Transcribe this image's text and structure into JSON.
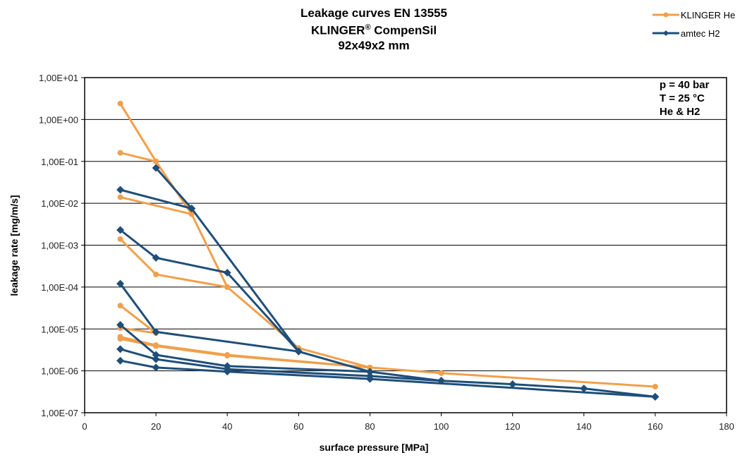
{
  "chart_data": {
    "type": "line",
    "title": [
      "Leakage curves EN 13555",
      "KLINGER® CompenSil",
      "92x49x2 mm"
    ],
    "title_parts": {
      "line1": "Leakage curves EN 13555",
      "line2_a": "KLINGER",
      "line2_sup": "®",
      "line2_b": " CompenSil",
      "line3": "92x49x2 mm"
    },
    "xlabel": "surface pressure [MPa]",
    "ylabel": "leakage rate [mg/m/s]",
    "xlim": [
      0,
      180
    ],
    "ylim": [
      1e-07,
      10
    ],
    "yscale": "log",
    "grid": "horizontal",
    "legend_position": "top-right",
    "x_ticks": [
      0,
      20,
      40,
      60,
      80,
      100,
      120,
      140,
      160,
      180
    ],
    "x_tick_labels": [
      "0",
      "20",
      "40",
      "60",
      "80",
      "100",
      "120",
      "140",
      "160",
      "180"
    ],
    "y_ticks": [
      10,
      1,
      0.1,
      0.01,
      0.001,
      0.0001,
      1e-05,
      1e-06,
      1e-07
    ],
    "y_tick_labels": [
      "1,00E+01",
      "1,00E+00",
      "1,00E-01",
      "1,00E-02",
      "1,00E-03",
      "1,00E-04",
      "1,00E-05",
      "1,00E-06",
      "1,00E-07"
    ],
    "annotation": [
      "p = 40 bar",
      "T = 25 °C",
      "He & H2"
    ],
    "legend": [
      {
        "name": "KLINGER He",
        "color": "#F0A04B",
        "marker": "circle"
      },
      {
        "name": "amtec H2",
        "color": "#1F4E79",
        "marker": "diamond"
      }
    ],
    "series": [
      {
        "name": "KLINGER He",
        "group": 0,
        "points": [
          [
            10,
            2.4
          ],
          [
            20,
            0.1
          ],
          [
            30,
            0.0055
          ],
          [
            40,
            0.0001
          ],
          [
            60,
            3.5e-06
          ],
          [
            80,
            1.2e-06
          ],
          [
            100,
            8.8e-07
          ],
          [
            160,
            4.2e-07
          ]
        ]
      },
      {
        "name": "KLINGER He",
        "group": 0,
        "points": [
          [
            10,
            0.16
          ],
          [
            20,
            0.1
          ]
        ]
      },
      {
        "name": "KLINGER He",
        "group": 0,
        "points": [
          [
            10,
            0.014
          ],
          [
            30,
            0.0055
          ]
        ]
      },
      {
        "name": "KLINGER He",
        "group": 0,
        "points": [
          [
            10,
            0.0014
          ],
          [
            20,
            0.0002
          ],
          [
            40,
            0.0001
          ]
        ]
      },
      {
        "name": "KLINGER He",
        "group": 0,
        "points": [
          [
            10,
            3.6e-05
          ],
          [
            20,
            8e-06
          ]
        ]
      },
      {
        "name": "KLINGER He",
        "group": 0,
        "points": [
          [
            10,
            1.05e-05
          ],
          [
            20,
            8e-06
          ]
        ]
      },
      {
        "name": "KLINGER He",
        "group": 0,
        "points": [
          [
            10,
            6.5e-06
          ],
          [
            20,
            4.1e-06
          ],
          [
            40,
            2.4e-06
          ],
          [
            80,
            1.2e-06
          ]
        ]
      },
      {
        "name": "KLINGER He",
        "group": 0,
        "points": [
          [
            10,
            5.8e-06
          ],
          [
            20,
            3.9e-06
          ],
          [
            40,
            2.3e-06
          ],
          [
            80,
            1.2e-06
          ]
        ]
      },
      {
        "name": "amtec H2",
        "group": 1,
        "points": [
          [
            20,
            0.07
          ],
          [
            30,
            0.0075
          ],
          [
            60,
            2.9e-06
          ],
          [
            80,
            9.5e-07
          ],
          [
            100,
            5.8e-07
          ],
          [
            120,
            4.8e-07
          ],
          [
            140,
            3.8e-07
          ],
          [
            160,
            2.4e-07
          ]
        ]
      },
      {
        "name": "amtec H2",
        "group": 1,
        "points": [
          [
            10,
            0.021
          ],
          [
            30,
            0.0075
          ]
        ]
      },
      {
        "name": "amtec H2",
        "group": 1,
        "points": [
          [
            10,
            0.0023
          ],
          [
            20,
            0.0005
          ],
          [
            40,
            0.00022
          ],
          [
            60,
            2.9e-06
          ]
        ]
      },
      {
        "name": "amtec H2",
        "group": 1,
        "points": [
          [
            10,
            0.00012
          ],
          [
            20,
            8.5e-06
          ],
          [
            60,
            2.9e-06
          ]
        ]
      },
      {
        "name": "amtec H2",
        "group": 1,
        "points": [
          [
            10,
            1.25e-05
          ],
          [
            20,
            2.4e-06
          ],
          [
            40,
            1.3e-06
          ],
          [
            80,
            9.5e-07
          ]
        ]
      },
      {
        "name": "amtec H2",
        "group": 1,
        "points": [
          [
            10,
            3.3e-06
          ],
          [
            20,
            1.9e-06
          ],
          [
            40,
            1.1e-06
          ],
          [
            80,
            7.5e-07
          ],
          [
            100,
            5.8e-07
          ]
        ]
      },
      {
        "name": "amtec H2",
        "group": 1,
        "points": [
          [
            10,
            1.75e-06
          ],
          [
            20,
            1.2e-06
          ],
          [
            40,
            9.6e-07
          ],
          [
            80,
            6.4e-07
          ],
          [
            160,
            2.4e-07
          ]
        ]
      }
    ]
  }
}
